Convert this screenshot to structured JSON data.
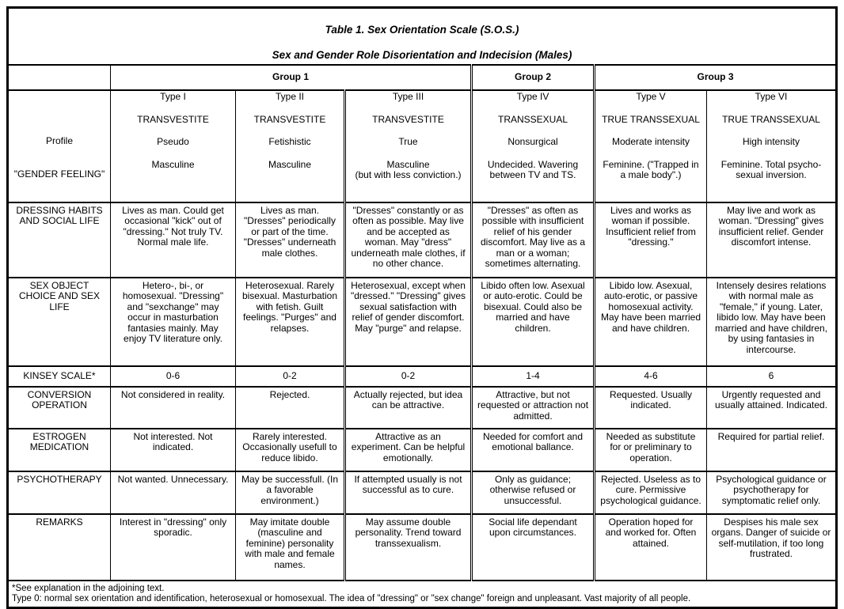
{
  "title": {
    "line1": "Table 1. Sex Orientation Scale (S.O.S.)",
    "line2": "Sex and Gender Role Disorientation and Indecision (Males)"
  },
  "groups": [
    "Group 1",
    "Group 2",
    "Group 3"
  ],
  "profile_labels": [
    "",
    "Profile",
    "\"GENDER FEELING\"",
    ""
  ],
  "types": [
    {
      "type": "Type I",
      "label": "TRANSVESTITE",
      "sub": "Pseudo",
      "feeling": "Masculine"
    },
    {
      "type": "Type II",
      "label": "TRANSVESTITE",
      "sub": "Fetishistic",
      "feeling": "Masculine"
    },
    {
      "type": "Type III",
      "label": "TRANSVESTITE",
      "sub": "True",
      "feeling": "Masculine\n(but with less conviction.)"
    },
    {
      "type": "Type IV",
      "label": "TRANSSEXUAL",
      "sub": "Nonsurgical",
      "feeling": "Undecided. Wavering\nbetween TV and TS."
    },
    {
      "type": "Type V",
      "label": "TRUE TRANSSEXUAL",
      "sub": "Moderate intensity",
      "feeling": "Feminine. (\"Trapped in\na male body\".)"
    },
    {
      "type": "Type VI",
      "label": "TRUE TRANSSEXUAL",
      "sub": "High intensity",
      "feeling": "Feminine. Total psycho-\nsexual inversion."
    }
  ],
  "rows": [
    {
      "label": "DRESSING HABITS\nAND SOCIAL LIFE",
      "cells": [
        "Lives as man. Could get\noccasional \"kick\" out of\n\"dressing.\" Not truly TV.\nNormal male life.",
        "Lives as man.\n\"Dresses\" periodically\nor part of the time.\n\"Dresses\" underneath\nmale clothes.",
        "\"Dresses\" constantly or as\noften as possible. May live\nand be accepted as\nwoman. May \"dress\"\nunderneath male clothes, if\nno other chance.",
        "\"Dresses\" as often as\npossible with insufficient\nrelief of his gender\ndiscomfort. May live as a\nman or a woman;\nsometimes alternating.",
        "Lives and works as\nwoman if possible.\nInsufficient relief from\n\"dressing.\"",
        "May live and work as\nwoman. \"Dressing\" gives\ninsufficient relief. Gender\ndiscomfort intense."
      ]
    },
    {
      "label": "SEX OBJECT\nCHOICE AND SEX\nLIFE",
      "cells": [
        "Hetero-, bi-, or\nhomosexual. \"Dressing\"\nand \"sexchange\" may\noccur in masturbation\nfantasies mainly. May\nenjoy TV literature only.",
        "Heterosexual. Rarely\nbisexual. Masturbation\nwith fetish. Guilt\nfeelings. \"Purges\" and\nrelapses.",
        "Heterosexual, except when\n\"dressed.\" \"Dressing\" gives\nsexual satisfaction with\nrelief of gender discomfort.\nMay \"purge\" and relapse.",
        "Libido often low. Asexual\nor auto-erotic. Could be\nbisexual. Could also be\nmarried and have\nchildren.",
        "Libido low. Asexual,\nauto-erotic, or passive\nhomosexual activity.\nMay have been married\nand have children.",
        "Intensely desires relations\nwith normal male as\n\"female,\" if young. Later,\nlibido low. May have been\nmarried and have children,\nby using fantasies in\nintercourse."
      ]
    },
    {
      "label": "KINSEY SCALE*",
      "cells": [
        "0-6",
        "0-2",
        "0-2",
        "1-4",
        "4-6",
        "6"
      ]
    },
    {
      "label": "CONVERSION\nOPERATION",
      "cells": [
        "Not considered in reality.",
        "Rejected.",
        "Actually rejected, but idea\ncan be attractive.",
        "Attractive, but not\nrequested or attraction not\nadmitted.",
        "Requested. Usually\nindicated.",
        "Urgently requested and\nusually attained. Indicated."
      ]
    },
    {
      "label": "ESTROGEN\nMEDICATION",
      "cells": [
        "Not interested. Not\nindicated.",
        "Rarely interested.\nOccasionally usefull to\nreduce libido.",
        "Attractive as an\nexperiment. Can be helpful\nemotionally.",
        "Needed for comfort and\nemotional ballance.",
        "Needed as substitute\nfor or preliminary to\noperation.",
        "Required for partial relief."
      ]
    },
    {
      "label": "PSYCHOTHERAPY",
      "cells": [
        "Not wanted. Unnecessary.",
        "May be successfull. (In\na favorable\nenvironment.)",
        "If attempted usually is not\nsuccessful as to cure.",
        "Only as guidance;\notherwise refused or\nunsuccessful.",
        "Rejected. Useless as to\ncure. Permissive\npsychological guidance.",
        "Psychological guidance or\npsychotherapy for\nsymptomatic relief only."
      ]
    },
    {
      "label": "REMARKS",
      "cells": [
        "Interest in \"dressing\" only\nsporadic.",
        "May imitate double\n(masculine and\nfeminine) personality\nwith male and female\nnames.",
        "May assume double\npersonality. Trend toward\ntranssexualism.",
        "Social life dependant\nupon circumstances.",
        "Operation hoped for\nand worked for. Often\nattained.",
        "Despises his male sex\norgans. Danger of suicide or\nself-mutilation, if too long\nfrustrated."
      ]
    }
  ],
  "footnotes": [
    "*See explanation in the adjoining text.",
    "Type 0: normal sex orientation and identification, heterosexual or homosexual. The idea of \"dressing\" or \"sex change\" foreign and unpleasant. Vast majority of all people."
  ]
}
